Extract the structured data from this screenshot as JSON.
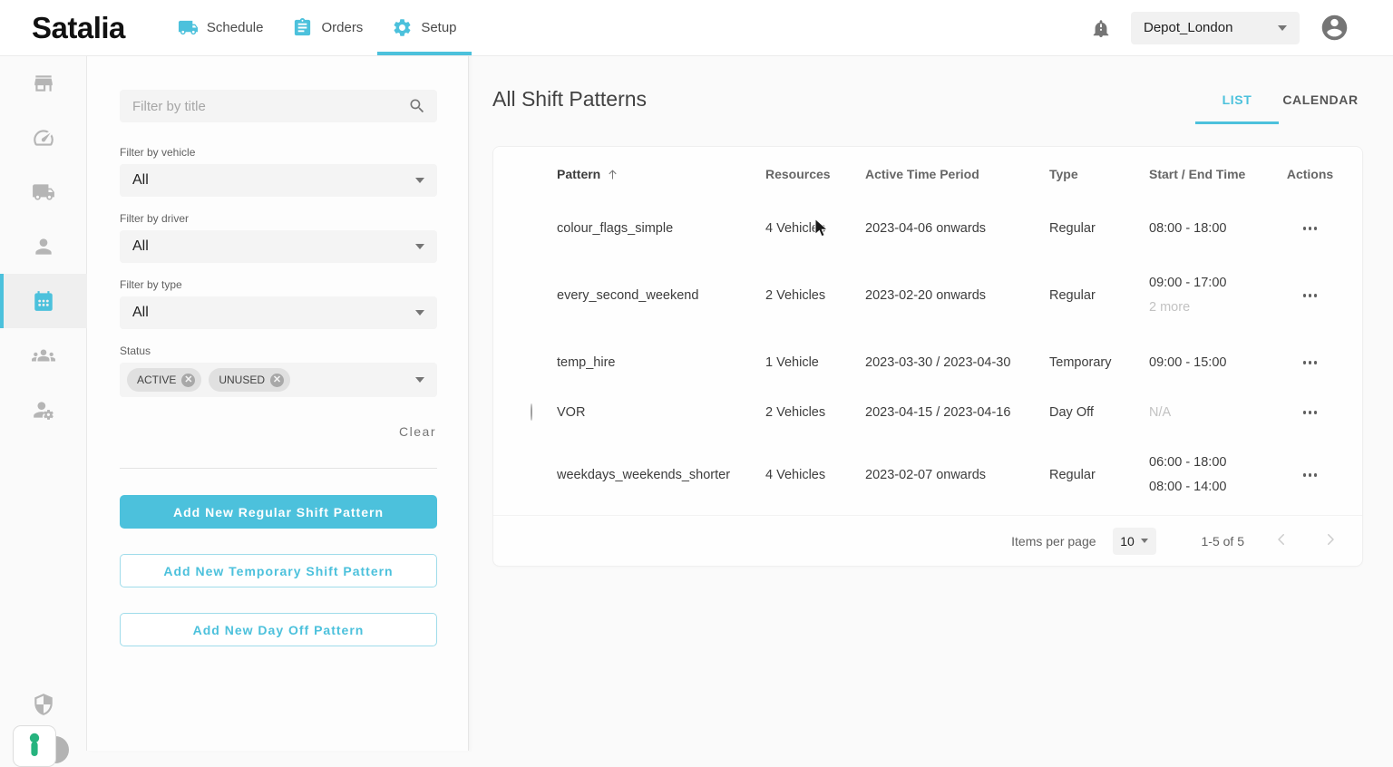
{
  "nav": {
    "logo": "Satalia",
    "items": [
      {
        "label": "Schedule",
        "icon": "truck-icon",
        "active": false
      },
      {
        "label": "Orders",
        "icon": "clipboard-icon",
        "active": false
      },
      {
        "label": "Setup",
        "icon": "gear-icon",
        "active": true
      }
    ],
    "depot_selector": {
      "value": "Depot_London"
    }
  },
  "rail": {
    "items": [
      "depot",
      "dashboard",
      "vehicles",
      "drivers",
      "shift-patterns",
      "teams",
      "user-management",
      "security"
    ],
    "active_item": "shift-patterns"
  },
  "filters": {
    "title_placeholder": "Filter by title",
    "vehicle": {
      "label": "Filter by vehicle",
      "value": "All"
    },
    "driver": {
      "label": "Filter by driver",
      "value": "All"
    },
    "type": {
      "label": "Filter by type",
      "value": "All"
    },
    "status": {
      "label": "Status",
      "chips": [
        "ACTIVE",
        "UNUSED"
      ]
    },
    "clear_label": "Clear",
    "add_regular_label": "Add New Regular Shift Pattern",
    "add_temporary_label": "Add New Temporary Shift Pattern",
    "add_dayoff_label": "Add New Day Off Pattern"
  },
  "main": {
    "title": "All Shift Patterns",
    "tabs": {
      "list": "LIST",
      "calendar": "CALENDAR",
      "active": "LIST"
    },
    "table": {
      "columns": {
        "pattern": "Pattern",
        "resources": "Resources",
        "active_period": "Active Time Period",
        "type": "Type",
        "start_end": "Start / End Time",
        "actions": "Actions"
      },
      "sorted_by": "Pattern ascending",
      "rows": [
        {
          "dot_style": "solid",
          "dot_color": "#e9c716",
          "pattern": "colour_flags_simple",
          "resources": "4 Vehicles",
          "active_period": "2023-04-06 onwards",
          "type": "Regular",
          "time_lines": [
            "08:00 - 18:00"
          ],
          "muted_lines": [],
          "height": "normal"
        },
        {
          "dot_style": "solid",
          "dot_color": "#35b54b",
          "pattern": "every_second_weekend",
          "resources": "2 Vehicles",
          "active_period": "2023-02-20 onwards",
          "type": "Regular",
          "time_lines": [
            "09:00 - 17:00"
          ],
          "muted_lines": [
            "2 more"
          ],
          "height": "tall"
        },
        {
          "dot_style": "striped",
          "dot_color": "#9c27b0",
          "pattern": "temp_hire",
          "resources": "1 Vehicle",
          "active_period": "2023-03-30 / 2023-04-30",
          "type": "Temporary",
          "time_lines": [
            "09:00 - 15:00"
          ],
          "muted_lines": [],
          "height": "normal"
        },
        {
          "dot_style": "hollow",
          "dot_color": "#9e9e9e",
          "pattern": "VOR",
          "resources": "2 Vehicles",
          "active_period": "2023-04-15 / 2023-04-16",
          "type": "Day Off",
          "time_lines": [],
          "muted_lines": [
            "N/A"
          ],
          "height": "short"
        },
        {
          "dot_style": "solid",
          "dot_color": "#d3302f",
          "pattern": "weekdays_weekends_shorter",
          "resources": "4 Vehicles",
          "active_period": "2023-02-07 onwards",
          "type": "Regular",
          "time_lines": [
            "06:00 - 18:00",
            "08:00 - 14:00"
          ],
          "muted_lines": [],
          "height": "tall"
        }
      ],
      "pagination": {
        "items_per_page_label": "Items per page",
        "items_per_page_value": "10",
        "range_label": "1-5 of 5"
      }
    }
  },
  "colors": {
    "accent": "#4cc1dc"
  }
}
